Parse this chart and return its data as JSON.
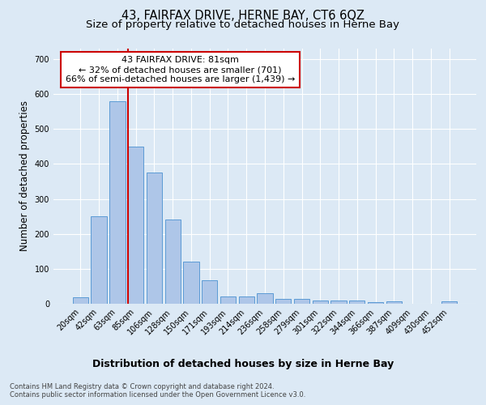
{
  "title": "43, FAIRFAX DRIVE, HERNE BAY, CT6 6QZ",
  "subtitle": "Size of property relative to detached houses in Herne Bay",
  "xlabel": "Distribution of detached houses by size in Herne Bay",
  "ylabel": "Number of detached properties",
  "footnote1": "Contains HM Land Registry data © Crown copyright and database right 2024.",
  "footnote2": "Contains public sector information licensed under the Open Government Licence v3.0.",
  "categories": [
    "20sqm",
    "42sqm",
    "63sqm",
    "85sqm",
    "106sqm",
    "128sqm",
    "150sqm",
    "171sqm",
    "193sqm",
    "214sqm",
    "236sqm",
    "258sqm",
    "279sqm",
    "301sqm",
    "322sqm",
    "344sqm",
    "366sqm",
    "387sqm",
    "409sqm",
    "430sqm",
    "452sqm"
  ],
  "values": [
    18,
    250,
    580,
    450,
    375,
    240,
    120,
    67,
    20,
    22,
    29,
    13,
    13,
    9,
    10,
    9,
    5,
    8,
    0,
    0,
    7
  ],
  "bar_color": "#aec6e8",
  "bar_edge_color": "#5b9bd5",
  "bg_color": "#dce9f5",
  "grid_color": "#ffffff",
  "annotation_line_color": "#cc0000",
  "annotation_text_line1": "43 FAIRFAX DRIVE: 81sqm",
  "annotation_text_line2": "← 32% of detached houses are smaller (701)",
  "annotation_text_line3": "66% of semi-detached houses are larger (1,439) →",
  "annotation_box_facecolor": "#ffffff",
  "annotation_box_edgecolor": "#cc0000",
  "ylim": [
    0,
    730
  ],
  "yticks": [
    0,
    100,
    200,
    300,
    400,
    500,
    600,
    700
  ],
  "title_fontsize": 10.5,
  "subtitle_fontsize": 9.5,
  "ylabel_fontsize": 8.5,
  "xlabel_fontsize": 9,
  "tick_fontsize": 7,
  "annotation_fontsize": 8,
  "footnote_fontsize": 6,
  "footnote_color": "#444444"
}
